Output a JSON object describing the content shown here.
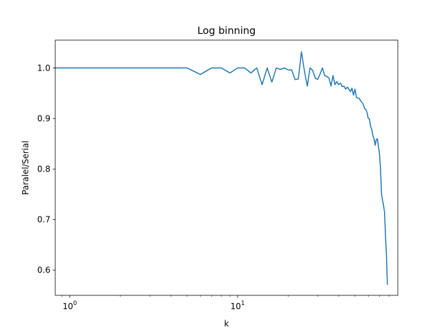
{
  "chart_data": {
    "type": "line",
    "title": "Log binning",
    "xlabel": "k",
    "ylabel": "Paralel/Serial",
    "xscale": "log",
    "xlim": [
      0.82,
      90
    ],
    "ylim": [
      0.55,
      1.055
    ],
    "x_ticks": [
      {
        "value": 1,
        "base": "10",
        "exp": "0"
      },
      {
        "value": 10,
        "base": "10",
        "exp": "1"
      }
    ],
    "y_ticks": [
      {
        "value": 0.6,
        "label": "0.6"
      },
      {
        "value": 0.7,
        "label": "0.7"
      },
      {
        "value": 0.8,
        "label": "0.8"
      },
      {
        "value": 0.9,
        "label": "0.9"
      },
      {
        "value": 1.0,
        "label": "1.0"
      }
    ],
    "grid": false,
    "series": [
      {
        "color": "#1f77b4",
        "x": [
          0.82,
          1,
          2,
          3,
          4,
          5,
          6,
          7,
          8,
          9,
          10,
          11,
          12,
          13,
          14,
          15,
          16,
          17,
          18,
          19,
          20,
          21,
          22,
          23,
          24,
          25,
          26,
          27,
          28,
          29,
          30,
          31,
          32,
          33,
          34,
          35,
          36,
          37,
          38,
          39,
          40,
          41,
          42,
          43,
          44,
          45,
          46,
          47,
          48,
          49,
          50,
          51,
          52,
          53,
          54,
          55,
          56,
          57,
          58,
          59,
          60,
          61,
          62,
          63,
          64,
          65,
          66,
          67,
          68,
          69,
          70,
          71,
          72,
          73,
          74,
          75,
          76,
          77,
          78
        ],
        "y": [
          1.0,
          1.0,
          1.0,
          1.0,
          1.0,
          1.0,
          0.987,
          1.0,
          1.0,
          0.99,
          1.0,
          1.0,
          0.99,
          1.0,
          0.967,
          1.0,
          0.972,
          1.0,
          0.997,
          1.0,
          0.996,
          0.996,
          0.977,
          0.978,
          1.032,
          0.994,
          0.964,
          1.0,
          0.995,
          0.98,
          0.977,
          0.988,
          1.0,
          0.985,
          0.983,
          0.98,
          0.964,
          0.985,
          0.967,
          0.973,
          0.967,
          0.97,
          0.963,
          0.964,
          0.958,
          0.962,
          0.958,
          0.953,
          0.96,
          0.946,
          0.958,
          0.942,
          0.94,
          0.94,
          0.935,
          0.932,
          0.928,
          0.92,
          0.918,
          0.912,
          0.9,
          0.899,
          0.884,
          0.878,
          0.865,
          0.86,
          0.847,
          0.858,
          0.86,
          0.845,
          0.83,
          0.8,
          0.75,
          0.738,
          0.728,
          0.715,
          0.67,
          0.63,
          0.572
        ]
      }
    ]
  }
}
